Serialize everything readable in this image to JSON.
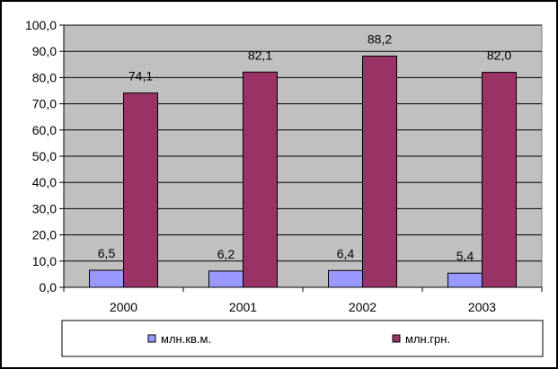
{
  "chart_data": {
    "type": "bar",
    "categories": [
      "2000",
      "2001",
      "2002",
      "2003"
    ],
    "series": [
      {
        "name": "млн.кв.м.",
        "values": [
          6.5,
          6.2,
          6.4,
          5.4
        ],
        "labels": [
          "6,5",
          "6,2",
          "6,4",
          "5,4"
        ],
        "color": "#9999ff"
      },
      {
        "name": "млн.грн.",
        "values": [
          74.1,
          82.1,
          88.2,
          82.0
        ],
        "labels": [
          "74,1",
          "82,1",
          "88,2",
          "82,0"
        ],
        "color": "#993366"
      }
    ],
    "ylim": [
      0,
      100
    ],
    "yticks": [
      0,
      10,
      20,
      30,
      40,
      50,
      60,
      70,
      80,
      90,
      100
    ],
    "ytick_labels": [
      "0,0",
      "10,0",
      "20,0",
      "30,0",
      "40,0",
      "50,0",
      "60,0",
      "70,0",
      "80,0",
      "90,0",
      "100,0"
    ],
    "plot_background": "#c0c0c0",
    "grid": true,
    "legend_position": "bottom"
  }
}
